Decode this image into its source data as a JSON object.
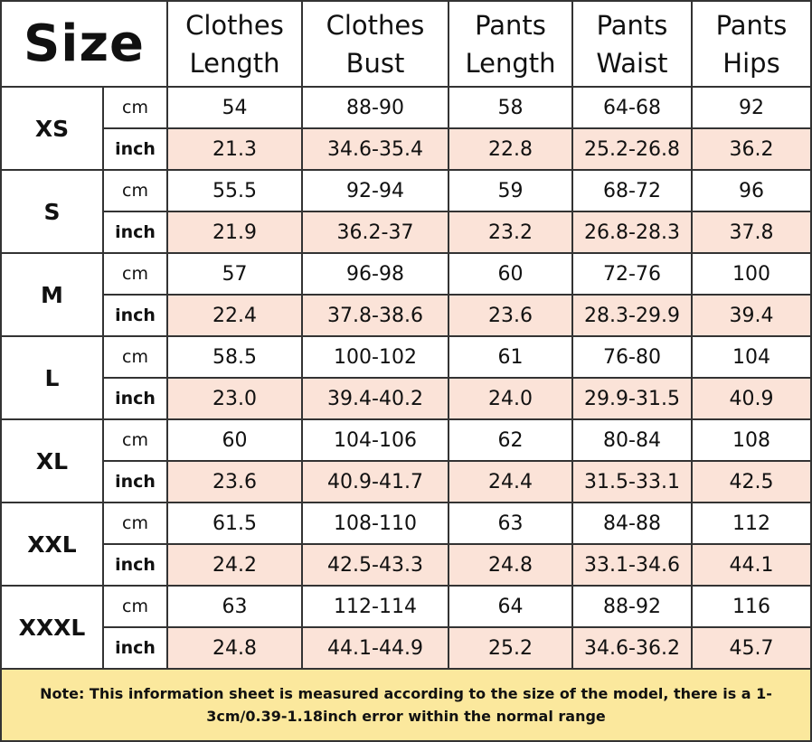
{
  "title": "Size",
  "columns": [
    {
      "line1": "Clothes",
      "line2": "Length"
    },
    {
      "line1": "Clothes",
      "line2": "Bust"
    },
    {
      "line1": "Pants",
      "line2": "Length"
    },
    {
      "line1": "Pants",
      "line2": "Waist"
    },
    {
      "line1": "Pants",
      "line2": "Hips"
    }
  ],
  "units": {
    "cm": "cm",
    "inch": "inch"
  },
  "sizes": [
    {
      "label": "XS",
      "cm": [
        "54",
        "88-90",
        "58",
        "64-68",
        "92"
      ],
      "inch": [
        "21.3",
        "34.6-35.4",
        "22.8",
        "25.2-26.8",
        "36.2"
      ]
    },
    {
      "label": "S",
      "cm": [
        "55.5",
        "92-94",
        "59",
        "68-72",
        "96"
      ],
      "inch": [
        "21.9",
        "36.2-37",
        "23.2",
        "26.8-28.3",
        "37.8"
      ]
    },
    {
      "label": "M",
      "cm": [
        "57",
        "96-98",
        "60",
        "72-76",
        "100"
      ],
      "inch": [
        "22.4",
        "37.8-38.6",
        "23.6",
        "28.3-29.9",
        "39.4"
      ]
    },
    {
      "label": "L",
      "cm": [
        "58.5",
        "100-102",
        "61",
        "76-80",
        "104"
      ],
      "inch": [
        "23.0",
        "39.4-40.2",
        "24.0",
        "29.9-31.5",
        "40.9"
      ]
    },
    {
      "label": "XL",
      "cm": [
        "60",
        "104-106",
        "62",
        "80-84",
        "108"
      ],
      "inch": [
        "23.6",
        "40.9-41.7",
        "24.4",
        "31.5-33.1",
        "42.5"
      ]
    },
    {
      "label": "XXL",
      "cm": [
        "61.5",
        "108-110",
        "63",
        "84-88",
        "112"
      ],
      "inch": [
        "24.2",
        "42.5-43.3",
        "24.8",
        "33.1-34.6",
        "44.1"
      ]
    },
    {
      "label": "XXXL",
      "cm": [
        "63",
        "112-114",
        "64",
        "88-92",
        "116"
      ],
      "inch": [
        "24.8",
        "44.1-44.9",
        "25.2",
        "34.6-36.2",
        "45.7"
      ]
    }
  ],
  "note": "Note: This information sheet is measured according to the size of the model, there is a 1-3cm/0.39-1.18inch error within the normal range",
  "colors": {
    "inch_row_bg": "#fbe3d8",
    "note_bg": "#fbe89d",
    "border": "#333333"
  }
}
